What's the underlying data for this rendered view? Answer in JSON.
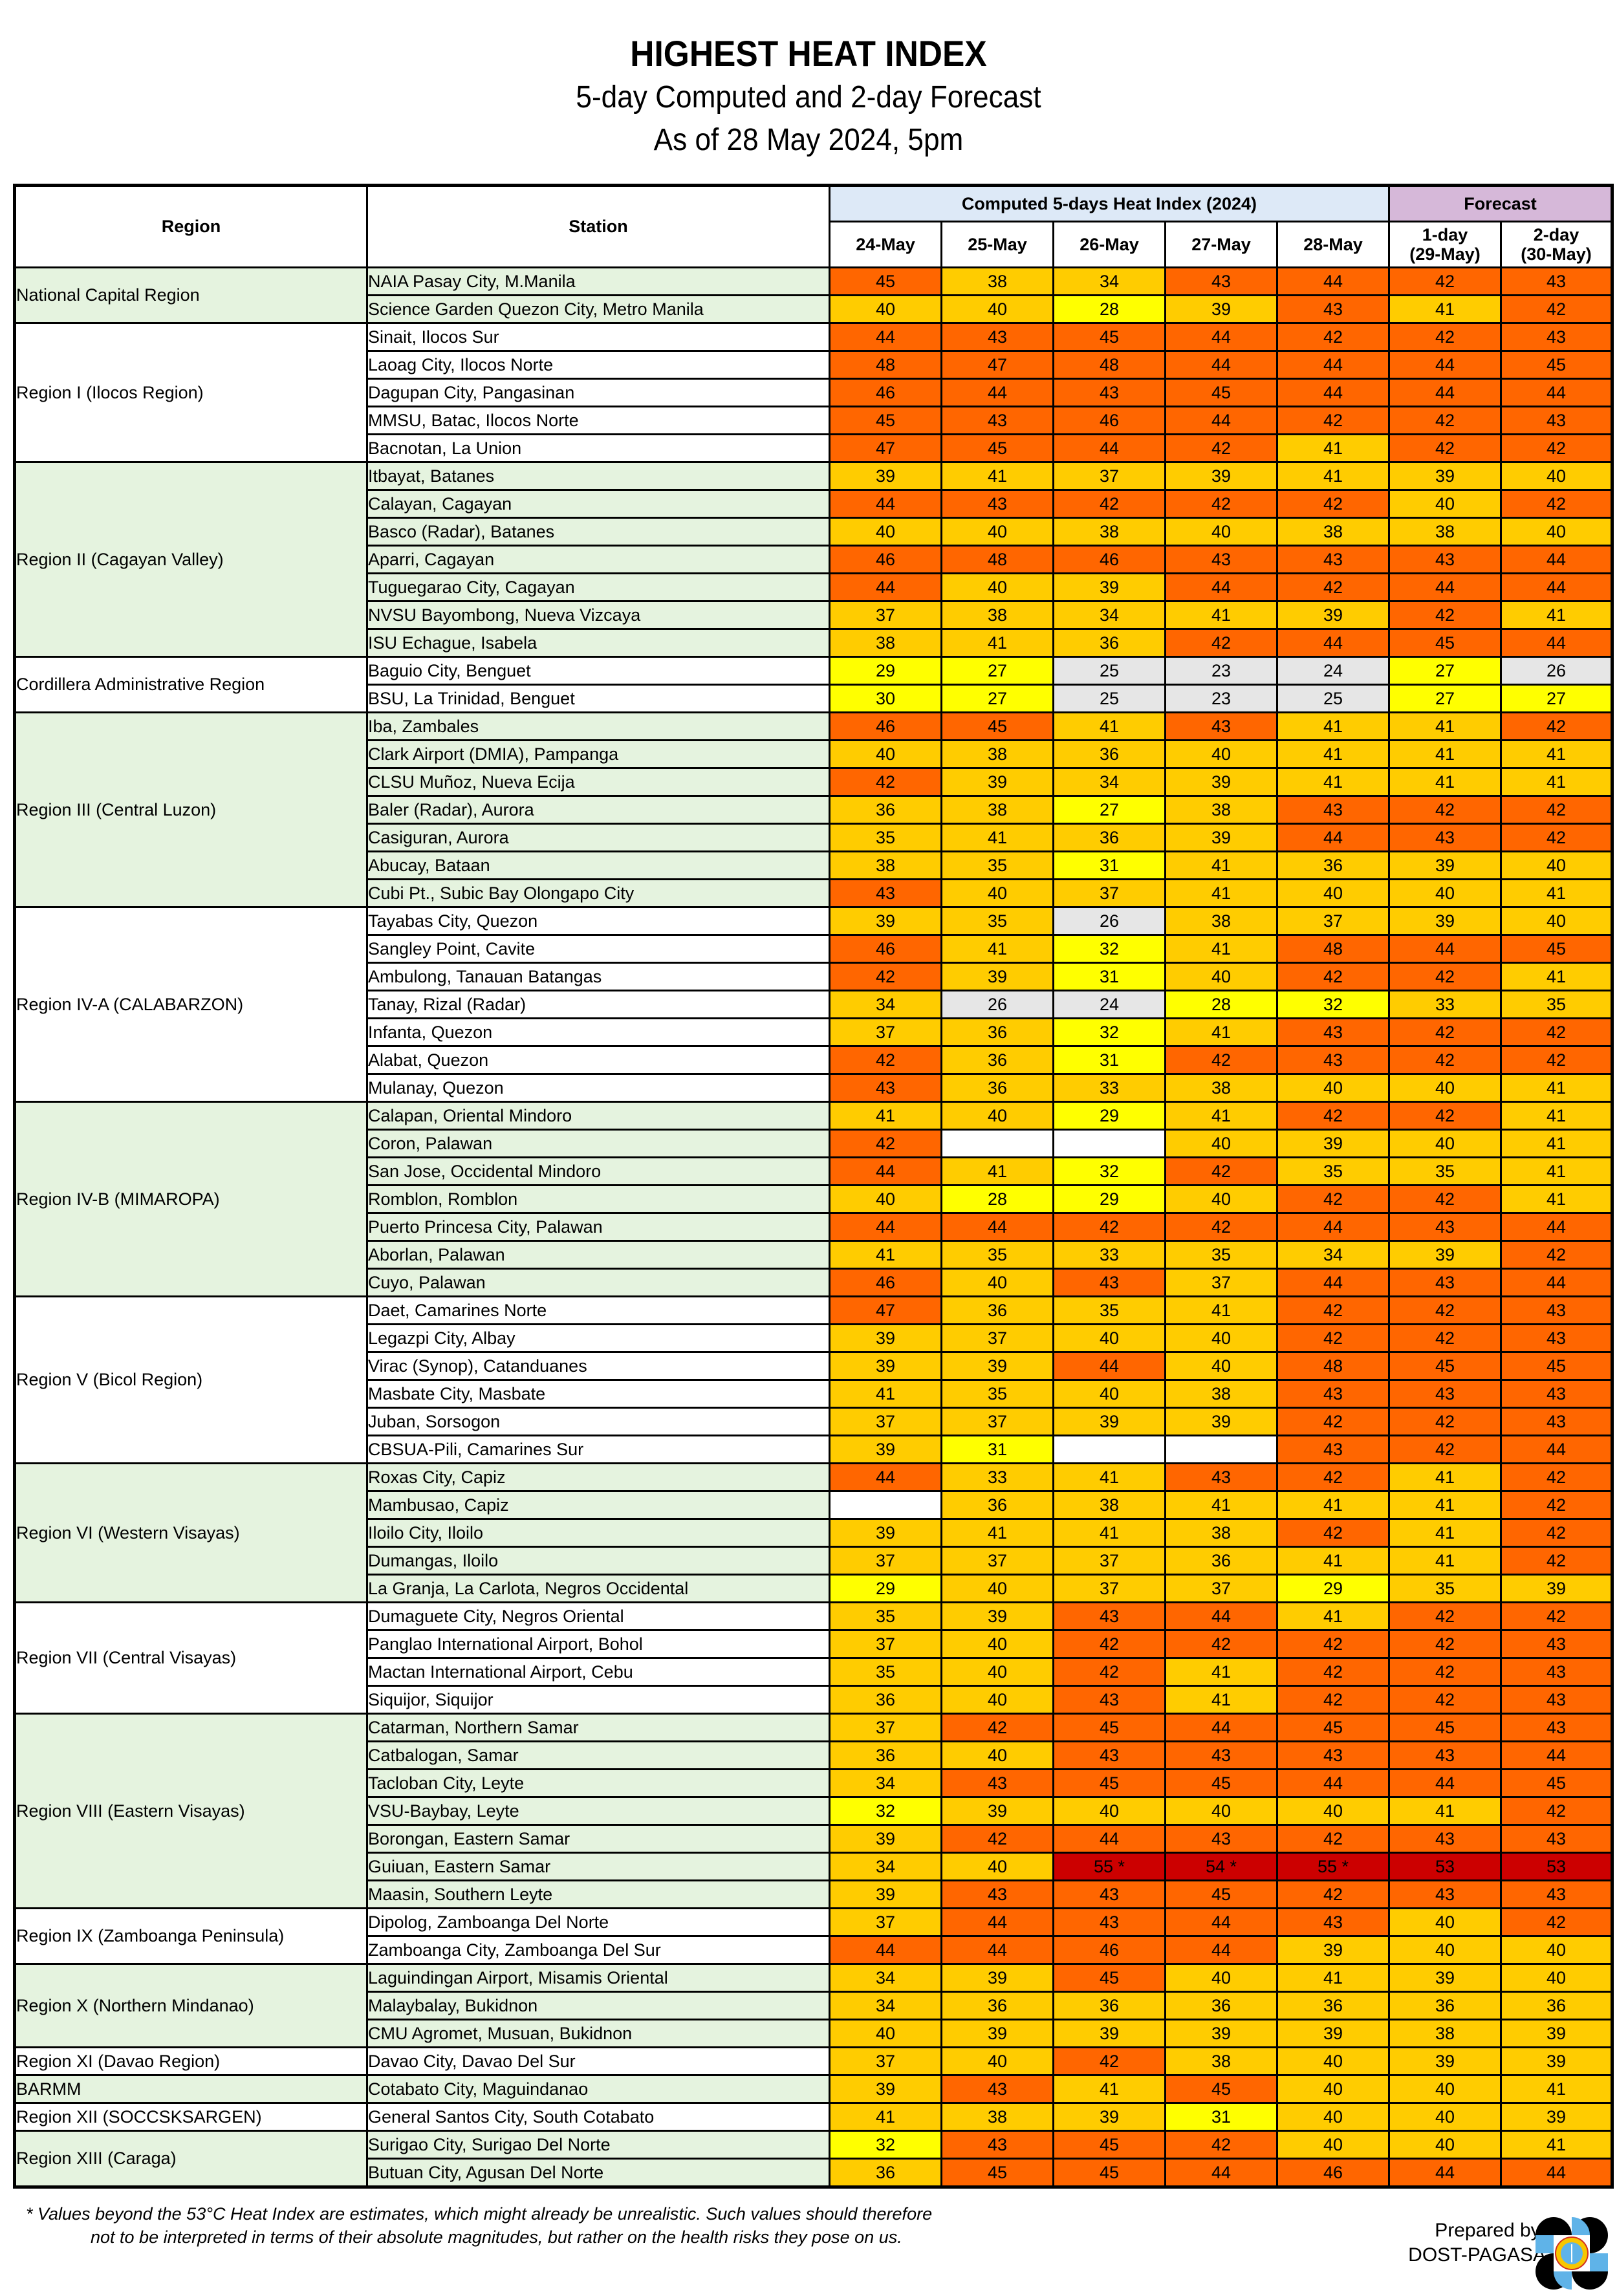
{
  "header": {
    "title": "HIGHEST HEAT INDEX",
    "subtitle": "5-day Computed and 2-day Forecast",
    "as_of": "As of 28 May 2024, 5pm"
  },
  "table": {
    "col_region": "Region",
    "col_station": "Station",
    "group_computed": "Computed 5-days Heat Index (2024)",
    "group_forecast": "Forecast",
    "days": [
      "24-May",
      "25-May",
      "26-May",
      "27-May",
      "28-May"
    ],
    "forecast_days": [
      {
        "line1": "1-day",
        "line2": "(29-May)"
      },
      {
        "line1": "2-day",
        "line2": "(30-May)"
      }
    ]
  },
  "colors": {
    "orange": "#ff6600",
    "amber": "#ffcc00",
    "yellow": "#ffff00",
    "gray": "#e6e6e6",
    "red": "#cc0000",
    "region_green": "#e5f3df",
    "computed_header": "#dde9f7",
    "forecast_header": "#d6b8d9"
  },
  "regions": [
    {
      "name": "National Capital Region",
      "shade": "g",
      "stations": [
        {
          "name": "NAIA Pasay City, M.Manila",
          "v": [
            "45",
            "38",
            "34",
            "43",
            "44",
            "42",
            "43"
          ]
        },
        {
          "name": "Science Garden Quezon City, Metro Manila",
          "v": [
            "40",
            "40",
            "28",
            "39",
            "43",
            "41",
            "42"
          ]
        }
      ]
    },
    {
      "name": "Region I (Ilocos Region)",
      "shade": "w",
      "stations": [
        {
          "name": "Sinait, Ilocos Sur",
          "v": [
            "44",
            "43",
            "45",
            "44",
            "42",
            "42",
            "43"
          ]
        },
        {
          "name": "Laoag City, Ilocos Norte",
          "v": [
            "48",
            "47",
            "48",
            "44",
            "44",
            "44",
            "45"
          ]
        },
        {
          "name": "Dagupan City, Pangasinan",
          "v": [
            "46",
            "44",
            "43",
            "45",
            "44",
            "44",
            "44"
          ]
        },
        {
          "name": "MMSU, Batac, Ilocos Norte",
          "v": [
            "45",
            "43",
            "46",
            "44",
            "42",
            "42",
            "43"
          ]
        },
        {
          "name": "Bacnotan, La Union",
          "v": [
            "47",
            "45",
            "44",
            "42",
            "41",
            "42",
            "42"
          ]
        }
      ]
    },
    {
      "name": "Region II (Cagayan Valley)",
      "shade": "g",
      "stations": [
        {
          "name": "Itbayat, Batanes",
          "v": [
            "39",
            "41",
            "37",
            "39",
            "41",
            "39",
            "40"
          ]
        },
        {
          "name": "Calayan, Cagayan",
          "v": [
            "44",
            "43",
            "42",
            "42",
            "42",
            "40",
            "42"
          ]
        },
        {
          "name": "Basco (Radar), Batanes",
          "v": [
            "40",
            "40",
            "38",
            "40",
            "38",
            "38",
            "40"
          ]
        },
        {
          "name": "Aparri, Cagayan",
          "v": [
            "46",
            "48",
            "46",
            "43",
            "43",
            "43",
            "44"
          ]
        },
        {
          "name": "Tuguegarao City, Cagayan",
          "v": [
            "44",
            "40",
            "39",
            "44",
            "42",
            "44",
            "44"
          ]
        },
        {
          "name": "NVSU Bayombong, Nueva Vizcaya",
          "v": [
            "37",
            "38",
            "34",
            "41",
            "39",
            "42",
            "41"
          ]
        },
        {
          "name": "ISU Echague, Isabela",
          "v": [
            "38",
            "41",
            "36",
            "42",
            "44",
            "45",
            "44"
          ]
        }
      ]
    },
    {
      "name": "Cordillera Administrative Region",
      "shade": "w",
      "stations": [
        {
          "name": "Baguio City, Benguet",
          "v": [
            "29",
            "27",
            "25",
            "23",
            "24",
            "27",
            "26"
          ]
        },
        {
          "name": "BSU, La Trinidad, Benguet",
          "v": [
            "30",
            "27",
            "25",
            "23",
            "25",
            "27",
            "27"
          ]
        }
      ]
    },
    {
      "name": "Region III (Central Luzon)",
      "shade": "g",
      "stations": [
        {
          "name": "Iba, Zambales",
          "v": [
            "46",
            "45",
            "41",
            "43",
            "41",
            "41",
            "42"
          ]
        },
        {
          "name": "Clark Airport (DMIA), Pampanga",
          "v": [
            "40",
            "38",
            "36",
            "40",
            "41",
            "41",
            "41"
          ]
        },
        {
          "name": "CLSU Muñoz, Nueva Ecija",
          "v": [
            "42",
            "39",
            "34",
            "39",
            "41",
            "41",
            "41"
          ]
        },
        {
          "name": "Baler (Radar), Aurora",
          "v": [
            "36",
            "38",
            "27",
            "38",
            "43",
            "42",
            "42"
          ]
        },
        {
          "name": "Casiguran, Aurora",
          "v": [
            "35",
            "41",
            "36",
            "39",
            "44",
            "43",
            "42"
          ]
        },
        {
          "name": "Abucay, Bataan",
          "v": [
            "38",
            "35",
            "31",
            "41",
            "36",
            "39",
            "40"
          ]
        },
        {
          "name": "Cubi Pt., Subic Bay Olongapo City",
          "v": [
            "43",
            "40",
            "37",
            "41",
            "40",
            "40",
            "41"
          ]
        }
      ]
    },
    {
      "name": "Region IV-A (CALABARZON)",
      "shade": "w",
      "stations": [
        {
          "name": "Tayabas City, Quezon",
          "v": [
            "39",
            "35",
            "26",
            "38",
            "37",
            "39",
            "40"
          ]
        },
        {
          "name": "Sangley Point, Cavite",
          "v": [
            "46",
            "41",
            "32",
            "41",
            "48",
            "44",
            "45"
          ]
        },
        {
          "name": "Ambulong, Tanauan Batangas",
          "v": [
            "42",
            "39",
            "31",
            "40",
            "42",
            "42",
            "41"
          ]
        },
        {
          "name": "Tanay, Rizal (Radar)",
          "v": [
            "34",
            "26",
            "24",
            "28",
            "32",
            "33",
            "35"
          ]
        },
        {
          "name": "Infanta, Quezon",
          "v": [
            "37",
            "36",
            "32",
            "41",
            "43",
            "42",
            "42"
          ]
        },
        {
          "name": "Alabat, Quezon",
          "v": [
            "42",
            "36",
            "31",
            "42",
            "43",
            "42",
            "42"
          ]
        },
        {
          "name": "Mulanay, Quezon",
          "v": [
            "43",
            "36",
            "33",
            "38",
            "40",
            "40",
            "41"
          ]
        }
      ]
    },
    {
      "name": "Region IV-B (MIMAROPA)",
      "shade": "g",
      "stations": [
        {
          "name": "Calapan, Oriental Mindoro",
          "v": [
            "41",
            "40",
            "29",
            "41",
            "42",
            "42",
            "41"
          ]
        },
        {
          "name": "Coron, Palawan",
          "v": [
            "42",
            "",
            "",
            "40",
            "39",
            "40",
            "41"
          ]
        },
        {
          "name": "San Jose, Occidental Mindoro",
          "v": [
            "44",
            "41",
            "32",
            "42",
            "35",
            "35",
            "41"
          ]
        },
        {
          "name": "Romblon, Romblon",
          "v": [
            "40",
            "28",
            "29",
            "40",
            "42",
            "42",
            "41"
          ]
        },
        {
          "name": "Puerto Princesa City, Palawan",
          "v": [
            "44",
            "44",
            "42",
            "42",
            "44",
            "43",
            "44"
          ]
        },
        {
          "name": "Aborlan, Palawan",
          "v": [
            "41",
            "35",
            "33",
            "35",
            "34",
            "39",
            "42"
          ]
        },
        {
          "name": "Cuyo, Palawan",
          "v": [
            "46",
            "40",
            "43",
            "37",
            "44",
            "43",
            "44"
          ]
        }
      ]
    },
    {
      "name": "Region V (Bicol Region)",
      "shade": "w",
      "stations": [
        {
          "name": "Daet, Camarines Norte",
          "v": [
            "47",
            "36",
            "35",
            "41",
            "42",
            "42",
            "43"
          ]
        },
        {
          "name": "Legazpi City, Albay",
          "v": [
            "39",
            "37",
            "40",
            "40",
            "42",
            "42",
            "43"
          ]
        },
        {
          "name": "Virac (Synop), Catanduanes",
          "v": [
            "39",
            "39",
            "44",
            "40",
            "48",
            "45",
            "45"
          ]
        },
        {
          "name": "Masbate City, Masbate",
          "v": [
            "41",
            "35",
            "40",
            "38",
            "43",
            "43",
            "43"
          ]
        },
        {
          "name": "Juban, Sorsogon",
          "v": [
            "37",
            "37",
            "39",
            "39",
            "42",
            "42",
            "43"
          ]
        },
        {
          "name": "CBSUA-Pili, Camarines Sur",
          "v": [
            "39",
            "31",
            "",
            "",
            "43",
            "42",
            "44"
          ]
        }
      ]
    },
    {
      "name": "Region VI (Western Visayas)",
      "shade": "g",
      "stations": [
        {
          "name": "Roxas City, Capiz",
          "v": [
            "44",
            "33",
            "41",
            "43",
            "42",
            "41",
            "42"
          ]
        },
        {
          "name": "Mambusao, Capiz",
          "v": [
            "",
            "36",
            "38",
            "41",
            "41",
            "41",
            "42"
          ]
        },
        {
          "name": "Iloilo City, Iloilo",
          "v": [
            "39",
            "41",
            "41",
            "38",
            "42",
            "41",
            "42"
          ]
        },
        {
          "name": "Dumangas, Iloilo",
          "v": [
            "37",
            "37",
            "37",
            "36",
            "41",
            "41",
            "42"
          ]
        },
        {
          "name": "La Granja, La Carlota, Negros Occidental",
          "v": [
            "29",
            "40",
            "37",
            "37",
            "29",
            "35",
            "39"
          ]
        }
      ]
    },
    {
      "name": "Region VII (Central Visayas)",
      "shade": "w",
      "stations": [
        {
          "name": "Dumaguete City, Negros Oriental",
          "v": [
            "35",
            "39",
            "43",
            "44",
            "41",
            "42",
            "42"
          ]
        },
        {
          "name": "Panglao International Airport, Bohol",
          "v": [
            "37",
            "40",
            "42",
            "42",
            "42",
            "42",
            "43"
          ]
        },
        {
          "name": "Mactan International Airport, Cebu",
          "v": [
            "35",
            "40",
            "42",
            "41",
            "42",
            "42",
            "43"
          ]
        },
        {
          "name": "Siquijor, Siquijor",
          "v": [
            "36",
            "40",
            "43",
            "41",
            "42",
            "42",
            "43"
          ]
        }
      ]
    },
    {
      "name": "Region VIII (Eastern Visayas)",
      "shade": "g",
      "stations": [
        {
          "name": "Catarman, Northern Samar",
          "v": [
            "37",
            "42",
            "45",
            "44",
            "45",
            "45",
            "43"
          ]
        },
        {
          "name": "Catbalogan, Samar",
          "v": [
            "36",
            "40",
            "43",
            "43",
            "43",
            "43",
            "44"
          ]
        },
        {
          "name": "Tacloban City, Leyte",
          "v": [
            "34",
            "43",
            "45",
            "45",
            "44",
            "44",
            "45"
          ]
        },
        {
          "name": "VSU-Baybay, Leyte",
          "v": [
            "32",
            "39",
            "40",
            "40",
            "40",
            "41",
            "42"
          ]
        },
        {
          "name": "Borongan, Eastern Samar",
          "v": [
            "39",
            "42",
            "44",
            "43",
            "42",
            "43",
            "43"
          ]
        },
        {
          "name": "Guiuan, Eastern Samar",
          "v": [
            "34",
            "40",
            "55 *",
            "54 *",
            "55 *",
            "53",
            "53"
          ]
        },
        {
          "name": "Maasin, Southern Leyte",
          "v": [
            "39",
            "43",
            "43",
            "45",
            "42",
            "43",
            "43"
          ]
        }
      ]
    },
    {
      "name": "Region IX (Zamboanga Peninsula)",
      "shade": "w",
      "stations": [
        {
          "name": "Dipolog, Zamboanga Del Norte",
          "v": [
            "37",
            "44",
            "43",
            "44",
            "43",
            "40",
            "42"
          ]
        },
        {
          "name": "Zamboanga City, Zamboanga Del Sur",
          "v": [
            "44",
            "44",
            "46",
            "44",
            "39",
            "40",
            "40"
          ]
        }
      ]
    },
    {
      "name": "Region X (Northern Mindanao)",
      "shade": "g",
      "stations": [
        {
          "name": "Laguindingan Airport, Misamis Oriental",
          "v": [
            "34",
            "39",
            "45",
            "40",
            "41",
            "39",
            "40"
          ]
        },
        {
          "name": "Malaybalay, Bukidnon",
          "v": [
            "34",
            "36",
            "36",
            "36",
            "36",
            "36",
            "36"
          ]
        },
        {
          "name": "CMU Agromet, Musuan, Bukidnon",
          "v": [
            "40",
            "39",
            "39",
            "39",
            "39",
            "38",
            "39"
          ]
        }
      ]
    },
    {
      "name": "Region XI (Davao Region)",
      "shade": "w",
      "stations": [
        {
          "name": "Davao City, Davao Del Sur",
          "v": [
            "37",
            "40",
            "42",
            "38",
            "40",
            "39",
            "39"
          ]
        }
      ]
    },
    {
      "name": "BARMM",
      "shade": "g",
      "stations": [
        {
          "name": "Cotabato City, Maguindanao",
          "v": [
            "39",
            "43",
            "41",
            "45",
            "40",
            "40",
            "41"
          ]
        }
      ]
    },
    {
      "name": "Region XII (SOCCSKSARGEN)",
      "shade": "w",
      "stations": [
        {
          "name": "General Santos City, South Cotabato",
          "v": [
            "41",
            "38",
            "39",
            "31",
            "40",
            "40",
            "39"
          ]
        }
      ]
    },
    {
      "name": "Region XIII (Caraga)",
      "shade": "g",
      "stations": [
        {
          "name": "Surigao City, Surigao Del Norte",
          "v": [
            "32",
            "43",
            "45",
            "42",
            "40",
            "40",
            "41"
          ]
        },
        {
          "name": "Butuan City, Agusan Del Norte",
          "v": [
            "36",
            "45",
            "45",
            "44",
            "46",
            "44",
            "44"
          ]
        }
      ]
    }
  ],
  "footer": {
    "note_line1": "* Values beyond the 53°C Heat Index are estimates, which might already be unrealistic. Such values should therefore",
    "note_line2": "not to be interpreted in terms of their absolute magnitudes, but rather on the health risks they pose on us.",
    "prepared_by": "Prepared by:",
    "agency": "DOST-PAGASA",
    "logo_icon": "pagasa-logo-icon"
  }
}
